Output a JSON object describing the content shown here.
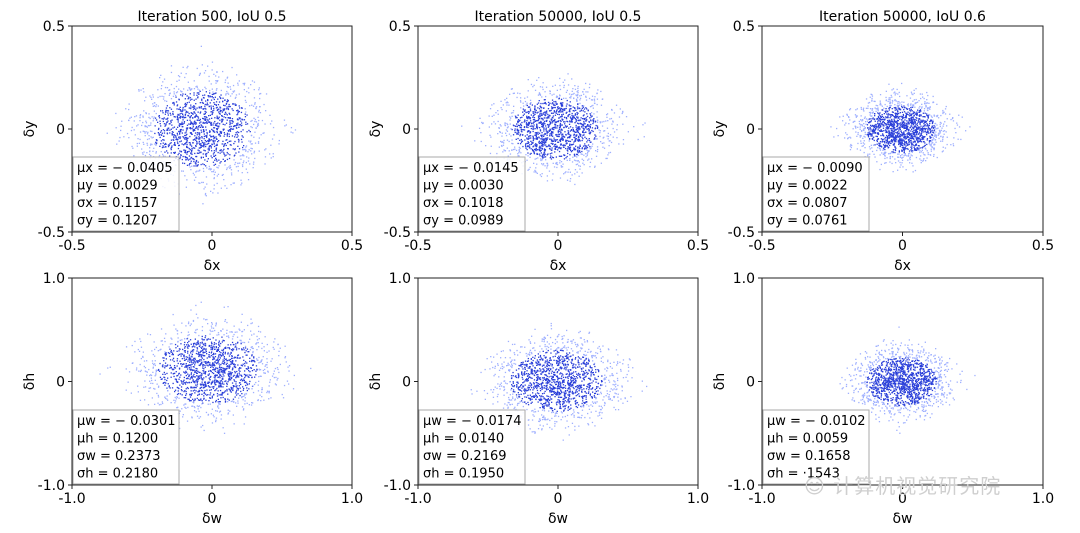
{
  "chart_data": [
    {
      "type": "scatter",
      "title": "Iteration 500, IoU 0.5",
      "xlabel": "δx",
      "ylabel": "δy",
      "xlim": [
        -0.5,
        0.5
      ],
      "ylim": [
        -0.5,
        0.5
      ],
      "xticks": [
        "-0.5",
        "0",
        "0.5"
      ],
      "yticks": [
        "0.5",
        "0",
        "-0.5"
      ],
      "stats": [
        "μx = − 0.0405",
        "μy = 0.0029",
        "σx = 0.1157",
        "σy = 0.1207"
      ],
      "distribution": {
        "mu_x": -0.0405,
        "mu_y": 0.0029,
        "sigma_x": 0.1157,
        "sigma_y": 0.1207
      }
    },
    {
      "type": "scatter",
      "title": "Iteration 50000, IoU 0.5",
      "xlabel": "δx",
      "ylabel": "δy",
      "xlim": [
        -0.5,
        0.5
      ],
      "ylim": [
        -0.5,
        0.5
      ],
      "xticks": [
        "-0.5",
        "0",
        "0.5"
      ],
      "yticks": [
        "0.5",
        "0",
        "-0.5"
      ],
      "stats": [
        "μx = − 0.0145",
        "μy = 0.0030",
        "σx = 0.1018",
        "σy = 0.0989"
      ],
      "distribution": {
        "mu_x": -0.0145,
        "mu_y": 0.003,
        "sigma_x": 0.1018,
        "sigma_y": 0.0989
      }
    },
    {
      "type": "scatter",
      "title": "Iteration 50000, IoU 0.6",
      "xlabel": "δx",
      "ylabel": "δy",
      "xlim": [
        -0.5,
        0.5
      ],
      "ylim": [
        -0.5,
        0.5
      ],
      "xticks": [
        "-0.5",
        "0",
        "0.5"
      ],
      "yticks": [
        "0.5",
        "0",
        "-0.5"
      ],
      "stats": [
        "μx = − 0.0090",
        "μy = 0.0022",
        "σx = 0.0807",
        "σy = 0.0761"
      ],
      "distribution": {
        "mu_x": -0.009,
        "mu_y": 0.0022,
        "sigma_x": 0.0807,
        "sigma_y": 0.0761
      }
    },
    {
      "type": "scatter",
      "title": "",
      "xlabel": "δw",
      "ylabel": "δh",
      "xlim": [
        -1.0,
        1.0
      ],
      "ylim": [
        -1.0,
        1.0
      ],
      "xticks": [
        "-1.0",
        "0",
        "1.0"
      ],
      "yticks": [
        "1.0",
        "0",
        "-1.0"
      ],
      "stats": [
        "μw = − 0.0301",
        "μh = 0.1200",
        "σw = 0.2373",
        "σh = 0.2180"
      ],
      "distribution": {
        "mu_x": -0.0301,
        "mu_y": 0.12,
        "sigma_x": 0.2373,
        "sigma_y": 0.218
      }
    },
    {
      "type": "scatter",
      "title": "",
      "xlabel": "δw",
      "ylabel": "δh",
      "xlim": [
        -1.0,
        1.0
      ],
      "ylim": [
        -1.0,
        1.0
      ],
      "xticks": [
        "-1.0",
        "0",
        "1.0"
      ],
      "yticks": [
        "1.0",
        "0",
        "-1.0"
      ],
      "stats": [
        "μw = − 0.0174",
        "μh = 0.0140",
        "σw = 0.2169",
        "σh = 0.1950"
      ],
      "distribution": {
        "mu_x": -0.0174,
        "mu_y": 0.014,
        "sigma_x": 0.2169,
        "sigma_y": 0.195
      }
    },
    {
      "type": "scatter",
      "title": "",
      "xlabel": "δw",
      "ylabel": "δh",
      "xlim": [
        -1.0,
        1.0
      ],
      "ylim": [
        -1.0,
        1.0
      ],
      "xticks": [
        "-1.0",
        "0",
        "1.0"
      ],
      "yticks": [
        "1.0",
        "0",
        "-1.0"
      ],
      "stats": [
        "μw = − 0.0102",
        "μh = 0.0059",
        "σw = 0.1658",
        "σh = ·1543"
      ],
      "distribution": {
        "mu_x": -0.0102,
        "mu_y": 0.0059,
        "sigma_x": 0.1658,
        "sigma_y": 0.1543
      }
    }
  ],
  "colors": {
    "points": "#2a3fd9",
    "points_light": "#9fb0ff",
    "axis": "#222222",
    "stats_border": "#aaaaaa"
  },
  "watermark": {
    "text": "计算机视觉研究院",
    "icon": "wechat-icon"
  }
}
